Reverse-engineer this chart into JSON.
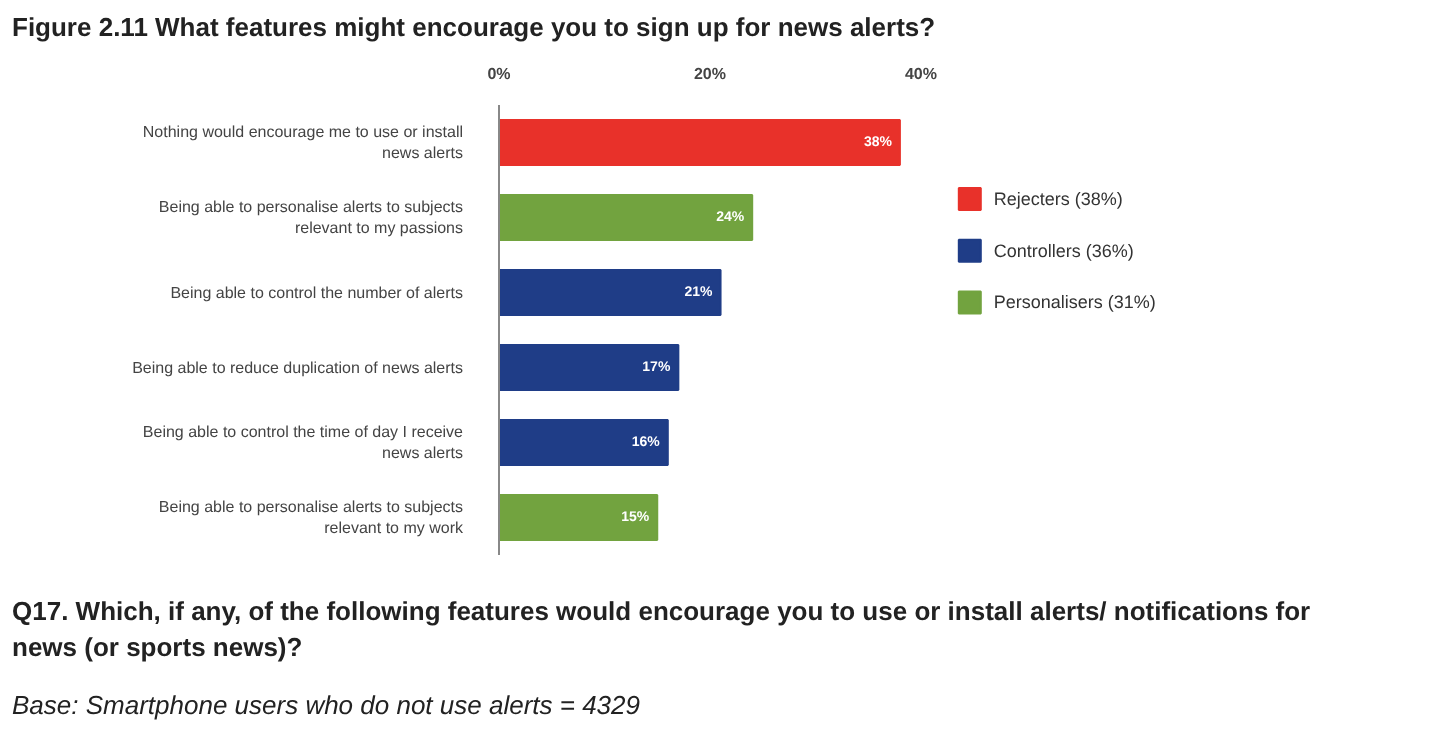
{
  "chart_data": {
    "type": "bar",
    "orientation": "horizontal",
    "title": "Figure 2.11 What features might encourage you to sign up for news alerts?",
    "categories": [
      "Nothing would encourage me to use or install news alerts",
      "Being able to personalise alerts to subjects relevant to my passions",
      "Being able to control the number of alerts",
      "Being able to reduce duplication of news alerts",
      "Being able to control the time of day I receive news alerts",
      "Being able to personalise alerts to subjects relevant to my work"
    ],
    "series": [
      {
        "name": "Rejecters (38%)",
        "color": "#e8312a",
        "values": [
          38,
          null,
          null,
          null,
          null,
          null
        ],
        "value_labels": [
          "38%",
          null,
          null,
          null,
          null,
          null
        ]
      },
      {
        "name": "Controllers (36%)",
        "color": "#1f3d87",
        "values": [
          null,
          null,
          21,
          17,
          16,
          null
        ],
        "value_labels": [
          null,
          null,
          "21%",
          "17%",
          "16%",
          null
        ]
      },
      {
        "name": "Personalisers (31%)",
        "color": "#72a33f",
        "values": [
          null,
          24,
          null,
          null,
          null,
          15
        ],
        "value_labels": [
          null,
          "24%",
          null,
          null,
          null,
          "15%"
        ]
      }
    ],
    "xlim": [
      0,
      40
    ],
    "xticks": [
      {
        "value": 0,
        "label": "0%"
      },
      {
        "value": 20,
        "label": "20%"
      },
      {
        "value": 40,
        "label": "40%"
      }
    ],
    "grid": false,
    "legend": "right",
    "annotations": [
      "Q17. Which, if any, of the following features would encourage you to use or install alerts/ notifications for news (or sports news)?",
      "Base: Smartphone users who do not use alerts = 4329"
    ]
  }
}
